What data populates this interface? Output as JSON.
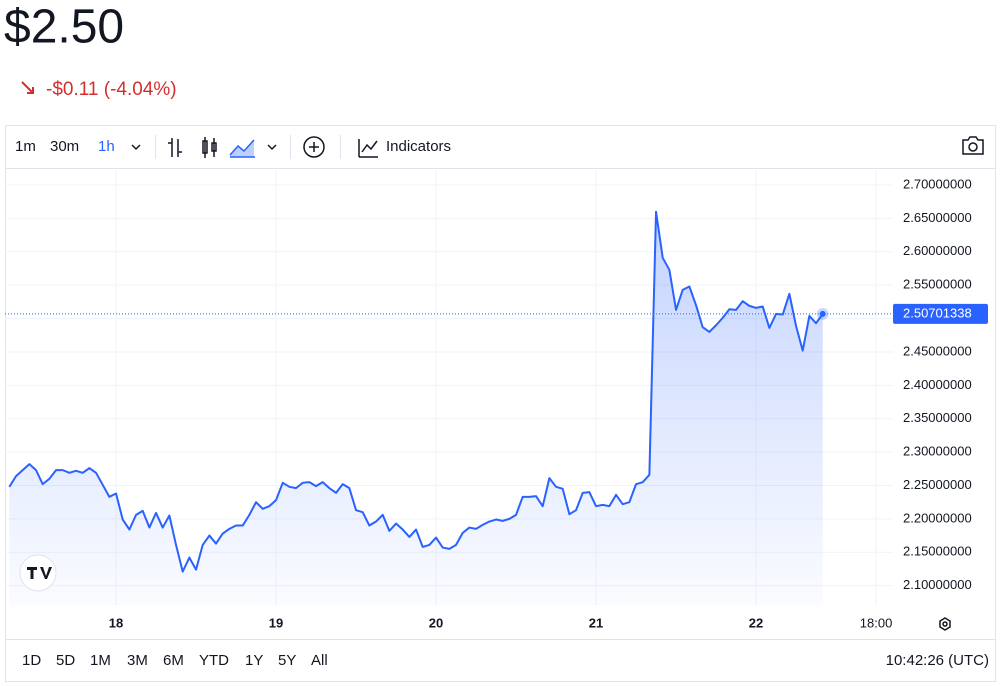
{
  "header": {
    "price": "$2.50",
    "change": "-$0.11 (-4.04%)"
  },
  "toolbar": {
    "intervals": [
      "1m",
      "30m",
      "1h"
    ],
    "selected_interval": 2,
    "indicators": "Indicators"
  },
  "range_bar": {
    "ranges": [
      "1D",
      "5D",
      "1M",
      "3M",
      "6M",
      "YTD",
      "1Y",
      "5Y",
      "All"
    ],
    "time": "10:42:26 (UTC)"
  },
  "chart_data": {
    "type": "area",
    "color": "#2962ff",
    "grid": true,
    "x": [
      17.3333,
      17.375,
      17.4167,
      17.4583,
      17.5,
      17.5417,
      17.5833,
      17.625,
      17.6667,
      17.7083,
      17.75,
      17.7917,
      17.8333,
      17.875,
      17.9167,
      17.9583,
      18,
      18.0417,
      18.0833,
      18.125,
      18.1667,
      18.2083,
      18.25,
      18.2917,
      18.3333,
      18.375,
      18.4167,
      18.4583,
      18.5,
      18.5417,
      18.5833,
      18.625,
      18.6667,
      18.7083,
      18.75,
      18.7917,
      18.8333,
      18.875,
      18.9167,
      18.9583,
      19,
      19.0417,
      19.0833,
      19.125,
      19.1667,
      19.2083,
      19.25,
      19.2917,
      19.3333,
      19.375,
      19.4167,
      19.4583,
      19.5,
      19.5417,
      19.5833,
      19.625,
      19.6667,
      19.7083,
      19.75,
      19.7917,
      19.8333,
      19.875,
      19.9167,
      19.9583,
      20,
      20.0417,
      20.0833,
      20.125,
      20.1667,
      20.2083,
      20.25,
      20.2917,
      20.3333,
      20.375,
      20.4167,
      20.4583,
      20.5,
      20.5417,
      20.5833,
      20.625,
      20.6667,
      20.7083,
      20.75,
      20.7917,
      20.8333,
      20.875,
      20.9167,
      20.9583,
      21,
      21.0417,
      21.0833,
      21.125,
      21.1667,
      21.2083,
      21.25,
      21.2917,
      21.3333,
      21.375,
      21.4167,
      21.4583,
      21.5,
      21.5417,
      21.5833,
      21.625,
      21.6667,
      21.7083,
      21.75,
      21.7917,
      21.8333,
      21.875,
      21.9167,
      21.9583,
      22,
      22.0417,
      22.0833,
      22.125,
      22.1667,
      22.2083,
      22.25,
      22.2917,
      22.3333,
      22.375,
      22.4167
    ],
    "values": [
      2.248,
      2.264,
      2.273,
      2.282,
      2.273,
      2.252,
      2.26,
      2.273,
      2.273,
      2.269,
      2.272,
      2.269,
      2.276,
      2.269,
      2.251,
      2.233,
      2.238,
      2.199,
      2.184,
      2.206,
      2.212,
      2.187,
      2.209,
      2.187,
      2.205,
      2.161,
      2.121,
      2.142,
      2.124,
      2.161,
      2.175,
      2.163,
      2.178,
      2.185,
      2.19,
      2.19,
      2.206,
      2.225,
      2.215,
      2.219,
      2.228,
      2.254,
      2.248,
      2.246,
      2.254,
      2.255,
      2.249,
      2.255,
      2.246,
      2.239,
      2.252,
      2.246,
      2.213,
      2.21,
      2.19,
      2.196,
      2.206,
      2.182,
      2.193,
      2.184,
      2.173,
      2.184,
      2.158,
      2.161,
      2.172,
      2.157,
      2.155,
      2.161,
      2.179,
      2.187,
      2.185,
      2.191,
      2.196,
      2.199,
      2.197,
      2.2,
      2.206,
      2.233,
      2.233,
      2.234,
      2.219,
      2.261,
      2.248,
      2.245,
      2.207,
      2.213,
      2.239,
      2.24,
      2.219,
      2.221,
      2.219,
      2.236,
      2.222,
      2.225,
      2.252,
      2.255,
      2.266,
      2.66,
      2.591,
      2.573,
      2.513,
      2.543,
      2.548,
      2.52,
      2.487,
      2.48,
      2.49,
      2.501,
      2.514,
      2.513,
      2.526,
      2.519,
      2.516,
      2.518,
      2.486,
      2.507,
      2.506,
      2.537,
      2.489,
      2.452,
      2.504,
      2.493,
      2.50701338
    ],
    "xlim": [
      17.306,
      22.856
    ],
    "ylim": [
      2.071,
      2.7225
    ],
    "xticks": [
      18,
      19,
      20,
      21,
      22,
      {
        "value": 22.75,
        "label": "18:00"
      }
    ],
    "yticks": [
      {
        "value": 2.1,
        "label": "2.10000000"
      },
      {
        "value": 2.15,
        "label": "2.15000000"
      },
      {
        "value": 2.2,
        "label": "2.20000000"
      },
      {
        "value": 2.25,
        "label": "2.25000000"
      },
      {
        "value": 2.3,
        "label": "2.30000000"
      },
      {
        "value": 2.35,
        "label": "2.35000000"
      },
      {
        "value": 2.4,
        "label": "2.40000000"
      },
      {
        "value": 2.45,
        "label": "2.45000000"
      },
      {
        "value": 2.5,
        "label": "2.50000000"
      },
      {
        "value": 2.55,
        "label": "2.55000000"
      },
      {
        "value": 2.6,
        "label": "2.60000000"
      },
      {
        "value": 2.65,
        "label": "2.65000000"
      },
      {
        "value": 2.7,
        "label": "2.70000000"
      }
    ]
  }
}
